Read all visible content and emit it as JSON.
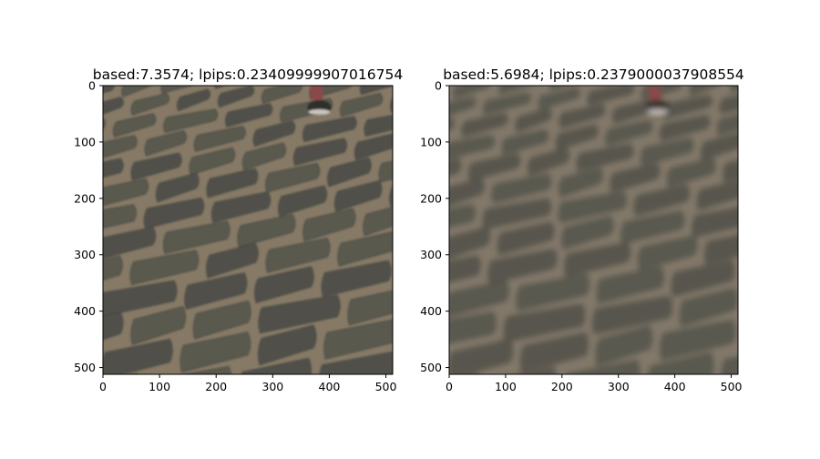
{
  "chart_data": [
    {
      "type": "image",
      "title": "based:7.3574; lpips:0.23409999907016754",
      "xlabel": "",
      "ylabel": "",
      "xlim": [
        0,
        512
      ],
      "ylim": [
        512,
        0
      ],
      "xticks": [
        0,
        100,
        200,
        300,
        400,
        500
      ],
      "yticks": [
        0,
        100,
        200,
        300,
        400,
        500
      ],
      "image": {
        "description_colors": {
          "ground": "#6b6456",
          "stone": "#4e4e48",
          "grout": "#867a66"
        },
        "sharp": true
      }
    },
    {
      "type": "image",
      "title": "based:5.6984; lpips:0.2379000037908554",
      "xlabel": "",
      "ylabel": "",
      "xlim": [
        0,
        512
      ],
      "ylim": [
        512,
        0
      ],
      "xticks": [
        0,
        100,
        200,
        300,
        400,
        500
      ],
      "yticks": [
        0,
        100,
        200,
        300,
        400,
        500
      ],
      "image": {
        "description_colors": {
          "ground": "#6d6657",
          "stone": "#55534b",
          "grout": "#83796a"
        },
        "sharp": false
      }
    }
  ]
}
